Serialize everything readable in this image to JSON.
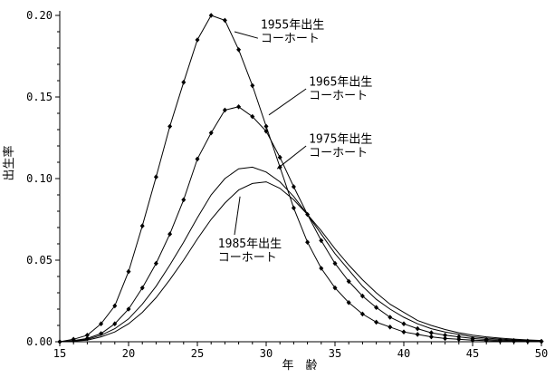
{
  "page": {
    "background": "#ffffff",
    "text_color": "#000000"
  },
  "chart_data": {
    "type": "line",
    "title": "",
    "xlabel": "年　齢",
    "ylabel": "出生率",
    "xlim": [
      15,
      50
    ],
    "ylim": [
      0,
      0.2
    ],
    "x_major_ticks": [
      15,
      20,
      25,
      30,
      35,
      40,
      45,
      50
    ],
    "y_major_ticks": [
      0,
      0.05,
      0.1,
      0.15,
      0.2
    ],
    "x_minor_step": 1,
    "y_minor_step": 0.01,
    "grid": false,
    "legend_position": "annotations-on-plot",
    "line_color": "#000000",
    "x": [
      15,
      16,
      17,
      18,
      19,
      20,
      21,
      22,
      23,
      24,
      25,
      26,
      27,
      28,
      29,
      30,
      31,
      32,
      33,
      34,
      35,
      36,
      37,
      38,
      39,
      40,
      41,
      42,
      43,
      44,
      45,
      46,
      47,
      48,
      49,
      50
    ],
    "series": [
      {
        "name": "1955年出生コーホート",
        "marker": "diamond",
        "values": [
          0,
          0.0015,
          0.004,
          0.011,
          0.022,
          0.043,
          0.071,
          0.101,
          0.132,
          0.159,
          0.185,
          0.2,
          0.197,
          0.179,
          0.157,
          0.132,
          0.107,
          0.082,
          0.061,
          0.045,
          0.033,
          0.024,
          0.017,
          0.012,
          0.009,
          0.006,
          0.0045,
          0.003,
          0.002,
          0.0015,
          0.001,
          0.0007,
          0.0004,
          0.0003,
          0.0002,
          0.0001
        ]
      },
      {
        "name": "1965年出生コーホート",
        "marker": "diamond",
        "values": [
          0,
          0.0007,
          0.002,
          0.005,
          0.011,
          0.02,
          0.033,
          0.048,
          0.066,
          0.087,
          0.112,
          0.128,
          0.142,
          0.144,
          0.138,
          0.129,
          0.113,
          0.095,
          0.078,
          0.062,
          0.048,
          0.037,
          0.028,
          0.021,
          0.015,
          0.011,
          0.008,
          0.0055,
          0.004,
          0.003,
          0.002,
          0.0014,
          0.001,
          0.0007,
          0.0004,
          0.0003
        ]
      },
      {
        "name": "1975年出生コーホート",
        "marker": "none",
        "values": [
          0,
          0.0005,
          0.0015,
          0.004,
          0.008,
          0.014,
          0.023,
          0.034,
          0.047,
          0.061,
          0.076,
          0.09,
          0.1,
          0.106,
          0.107,
          0.104,
          0.098,
          0.089,
          0.078,
          0.066,
          0.054,
          0.044,
          0.034,
          0.026,
          0.02,
          0.015,
          0.011,
          0.008,
          0.006,
          0.0045,
          0.003,
          0.0022,
          0.0016,
          0.0011,
          0.0008,
          0.0005
        ]
      },
      {
        "name": "1985年出生コーホート",
        "marker": "none",
        "values": [
          0,
          0.0004,
          0.001,
          0.003,
          0.006,
          0.011,
          0.018,
          0.027,
          0.038,
          0.05,
          0.063,
          0.075,
          0.085,
          0.093,
          0.097,
          0.098,
          0.094,
          0.087,
          0.078,
          0.068,
          0.057,
          0.047,
          0.038,
          0.03,
          0.023,
          0.018,
          0.013,
          0.01,
          0.0075,
          0.0055,
          0.004,
          0.003,
          0.0022,
          0.0016,
          0.0011,
          0.0008
        ]
      }
    ],
    "annotations": [
      {
        "name": "1955",
        "lines": [
          "1955年出生",
          "コーホート"
        ],
        "text_age": 29.6,
        "text_value": 0.198,
        "leader": {
          "from_age": 29.4,
          "from_value": 0.186,
          "to_age": 27.7,
          "to_value": 0.19
        }
      },
      {
        "name": "1965",
        "lines": [
          "1965年出生",
          "コーホート"
        ],
        "text_age": 33.1,
        "text_value": 0.163,
        "leader": {
          "from_age": 32.9,
          "from_value": 0.155,
          "to_age": 30.2,
          "to_value": 0.139
        }
      },
      {
        "name": "1975",
        "lines": [
          "1975年出生",
          "コーホート"
        ],
        "text_age": 33.1,
        "text_value": 0.128,
        "leader": {
          "from_age": 32.9,
          "from_value": 0.12,
          "to_age": 30.8,
          "to_value": 0.106
        }
      },
      {
        "name": "1985",
        "lines": [
          "1985年出生",
          "コーホート"
        ],
        "text_age": 26.5,
        "text_value": 0.064,
        "leader": {
          "from_age": 27.7,
          "from_value": 0.0655,
          "to_age": 28.1,
          "to_value": 0.089
        }
      }
    ]
  }
}
